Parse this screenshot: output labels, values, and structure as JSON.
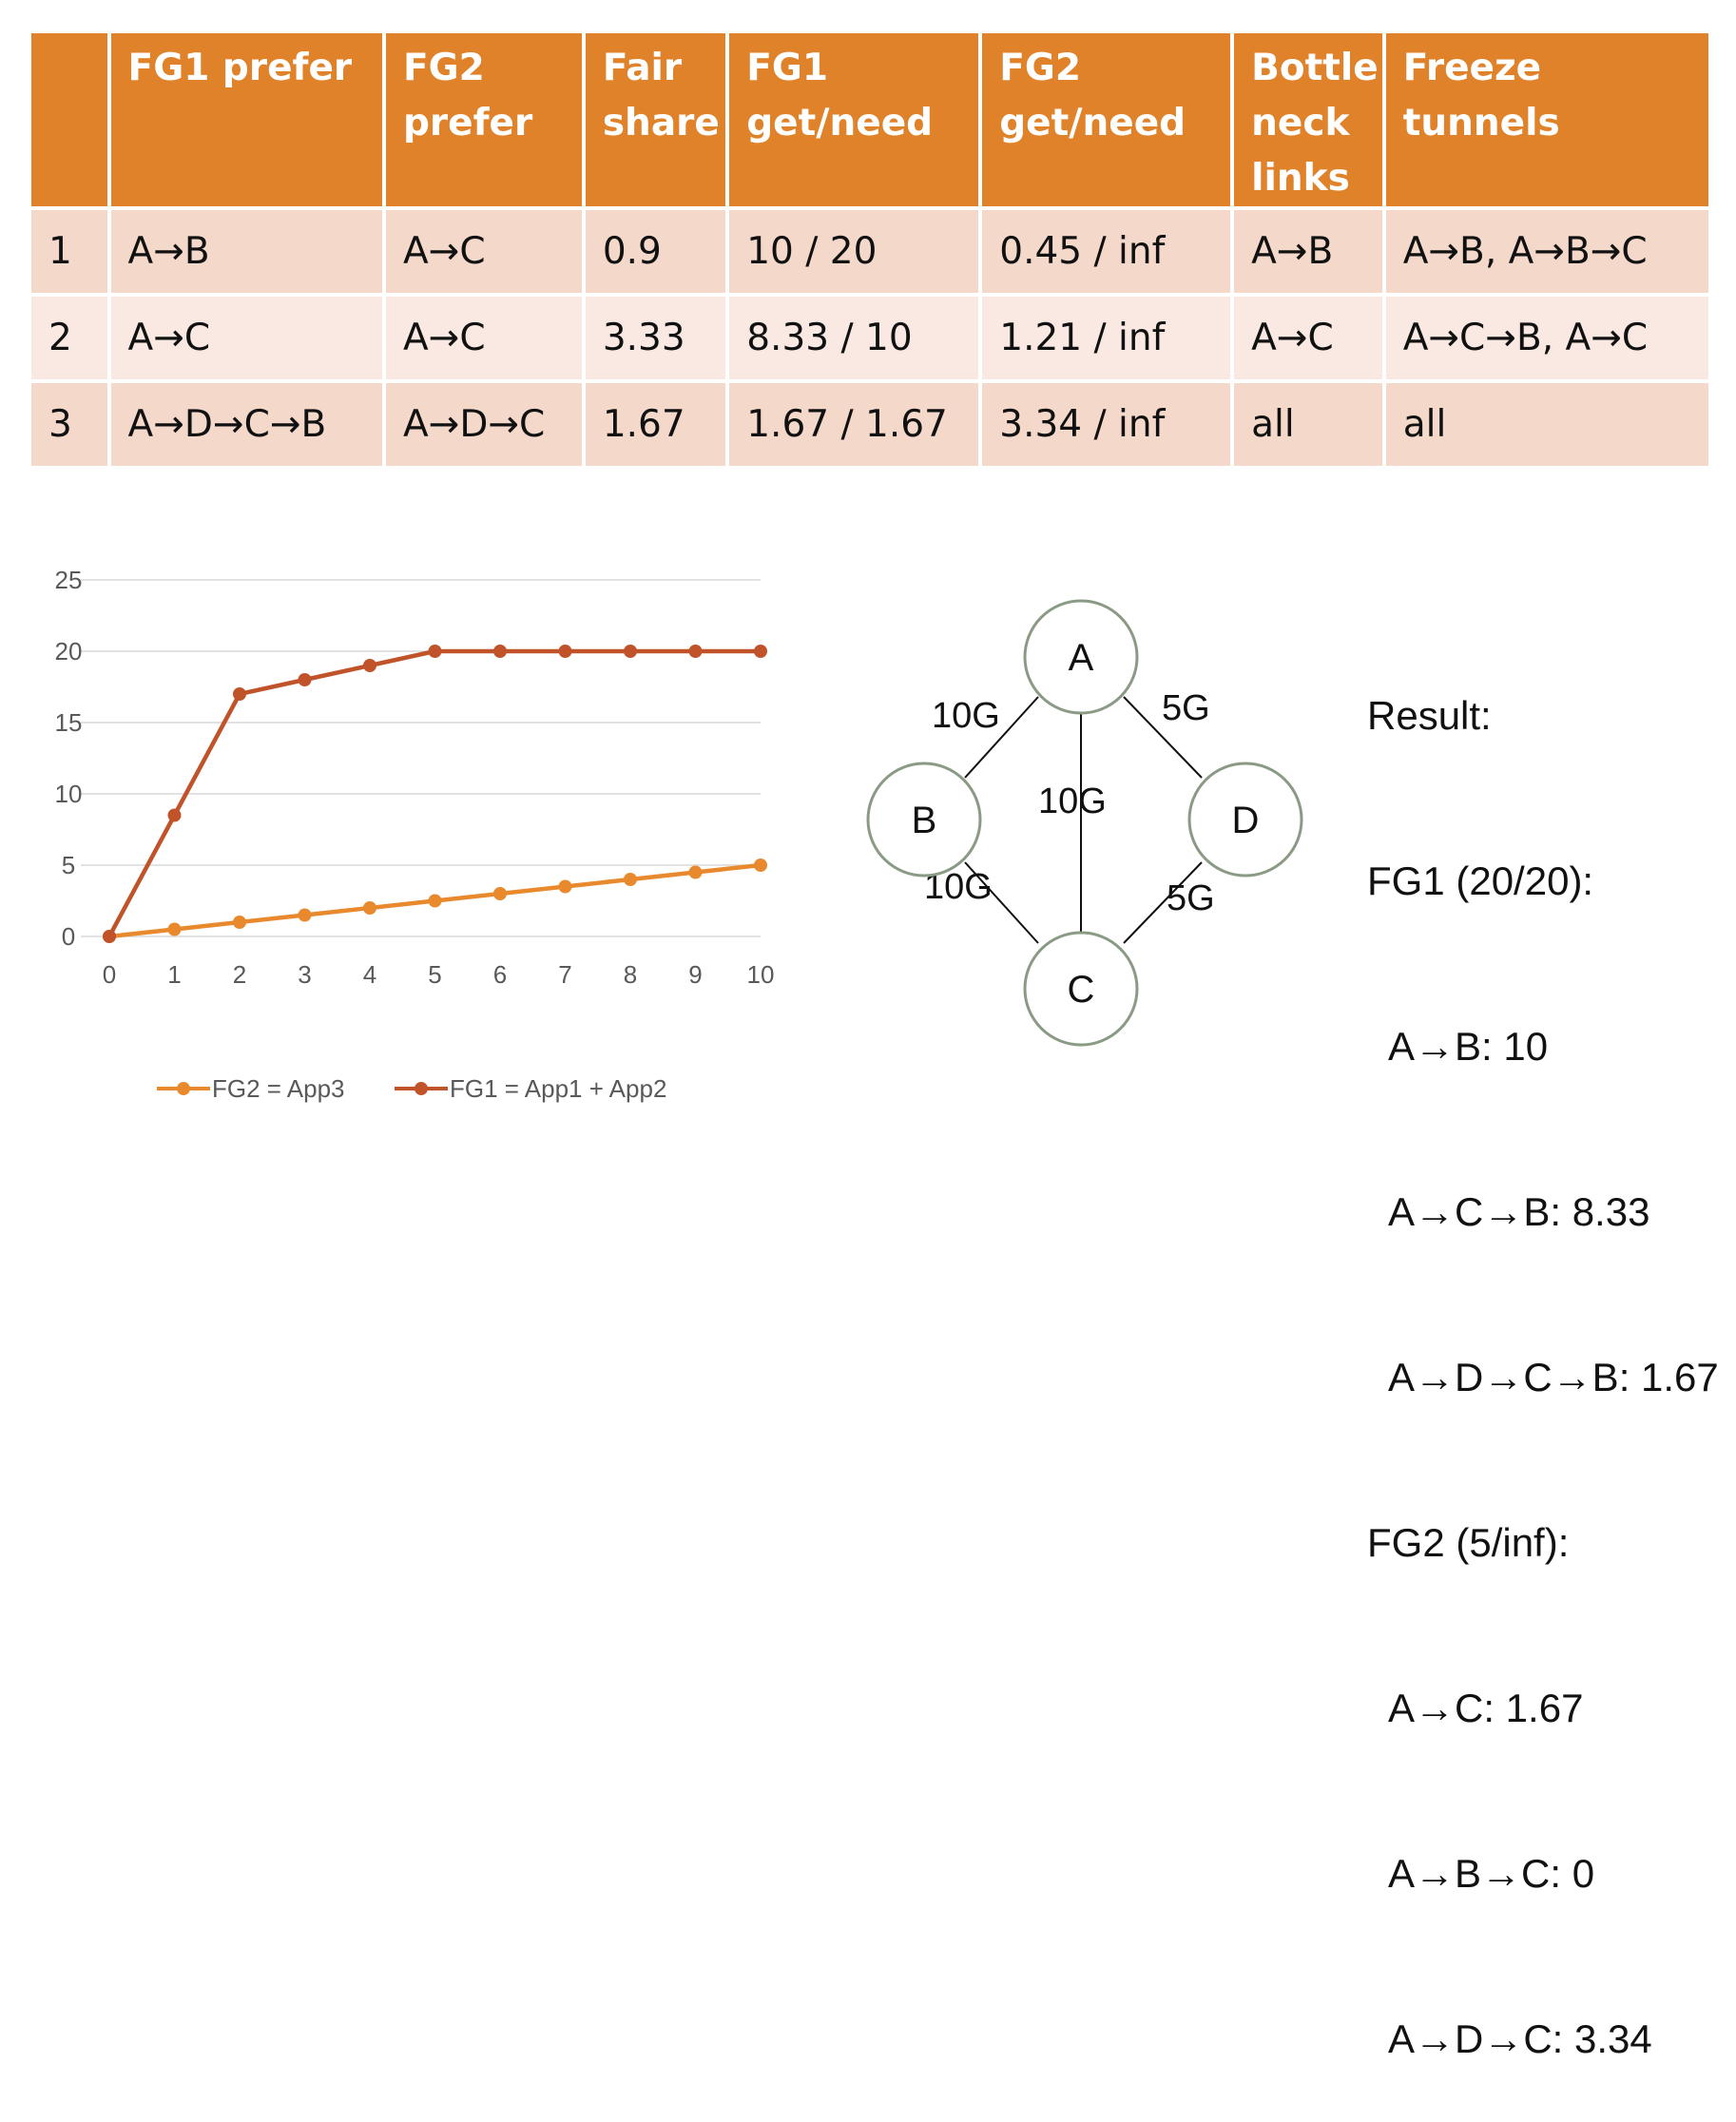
{
  "table": {
    "headers": [
      "",
      "FG1 prefer",
      "FG2\nprefer",
      "Fair\nshare",
      "FG1\nget/need",
      "FG2\nget/need",
      "Bottle\nneck\nlinks",
      "Freeze tunnels"
    ],
    "rows": [
      [
        "1",
        "A→B",
        "A→C",
        "0.9",
        "10 / 20",
        "0.45 / inf",
        "A→B",
        "A→B, A→B→C"
      ],
      [
        "2",
        "A→C",
        "A→C",
        "3.33",
        "8.33 / 10",
        "1.21 / inf",
        "A→C",
        "A→C→B, A→C"
      ],
      [
        "3",
        "A→D→C→B",
        "A→D→C",
        "1.67",
        "1.67 / 1.67",
        "3.34 / inf",
        "all",
        "all"
      ]
    ],
    "header_color": "#e0822a",
    "row_colors": [
      "#f4d8ca",
      "#fae9e3"
    ]
  },
  "chart_data": {
    "type": "line",
    "x": [
      0,
      1,
      2,
      3,
      4,
      5,
      6,
      7,
      8,
      9,
      10
    ],
    "yticks": [
      0,
      5,
      10,
      15,
      20,
      25
    ],
    "ylim": [
      0,
      25
    ],
    "series": [
      {
        "name": "FG2 = App3",
        "color": "#e8892e",
        "values": [
          0,
          0.5,
          1,
          1.5,
          2,
          2.5,
          3,
          3.5,
          4,
          4.5,
          5
        ]
      },
      {
        "name": "FG1 = App1 + App2",
        "color": "#c0532a",
        "values": [
          0,
          8.5,
          17,
          18,
          19,
          20,
          20,
          20,
          20,
          20,
          20
        ]
      }
    ],
    "title": "",
    "xlabel": "",
    "ylabel": "",
    "grid": true,
    "legend_position": "bottom"
  },
  "network": {
    "nodes": [
      {
        "id": "A",
        "label": "A"
      },
      {
        "id": "B",
        "label": "B"
      },
      {
        "id": "C",
        "label": "C"
      },
      {
        "id": "D",
        "label": "D"
      }
    ],
    "edges": [
      {
        "from": "A",
        "to": "B",
        "label": "10G"
      },
      {
        "from": "A",
        "to": "D",
        "label": "5G"
      },
      {
        "from": "A",
        "to": "C",
        "label": "10G"
      },
      {
        "from": "B",
        "to": "C",
        "label": "10G"
      },
      {
        "from": "D",
        "to": "C",
        "label": "5G"
      }
    ]
  },
  "result": {
    "heading": "Result:",
    "fg1_header": "FG1 (20/20):",
    "fg1_lines": [
      "A→B: 10",
      "A→C→B: 8.33",
      "A→D→C→B: 1.67"
    ],
    "fg2_header": "FG2 (5/inf):",
    "fg2_lines": [
      "A→C: 1.67",
      "A→B→C: 0",
      "A→D→C: 3.34"
    ]
  }
}
